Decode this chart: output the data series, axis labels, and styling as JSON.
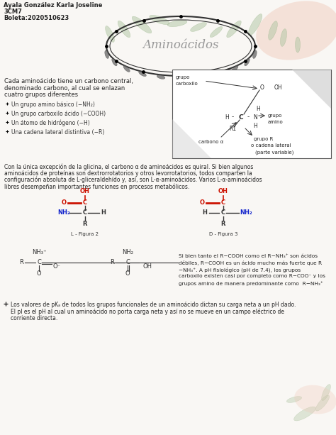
{
  "bg_color": "#f9f7f4",
  "header_name": "Ayala González Karla Joseline",
  "header_class": "3CM7",
  "header_boleta": "Boleta:2020510623",
  "title": "Aminoácidos",
  "para1_line1": "Cada aminoácido tiene un carbono central,",
  "para1_line2": "denominado carbono, al cual se enlazan",
  "para1_line3": "cuatro grupos diferentes",
  "bullets": [
    "Un grupo amino básico (−NH₂)",
    "Un grupo carboxilo ácido (−COOH)",
    "Un átomo de hidrógeno (−H)",
    "Una cadena lateral distintiva (−R)"
  ],
  "para2": "Con la única excepción de la glicina, el carbono α de aminoácidos es quiral. Si bien algunos aminoácidos de proteínas son dextrorrotatorios y otros levorrotatorios, todos comparten la configuración absoluta de L-gliceraldehído y, así, son L-α-aminoácidos. Varios L-α-aminoácidos libres desempeñan importantes funciones en procesos metabólicos.",
  "bullet3_line1": "Los valores de pKₐ de todos los grupos funcionales de un aminoácido dictan su carga neta a un pH dado.",
  "bullet3_line2": "El pI es el pH al cual un aminoácido no porta carga neta y así no se mueve en un campo eléctrico de",
  "bullet3_line3": "corriente directa.",
  "right_text_line1": "Si bien tanto el R−COOH como el R−NH₃⁺ son ácidos",
  "right_text_line2": "débiles, R−COOH es un ácido mucho más fuerte que R",
  "right_text_line3": "−NH₃⁺. A pH fisiológico (pH de 7.4), los grupos",
  "right_text_line4": "carboxilo existen casi por completo como R−COO⁻ y los",
  "right_text_line5": "grupos amino de manera predominante como  R−NH₃⁺"
}
